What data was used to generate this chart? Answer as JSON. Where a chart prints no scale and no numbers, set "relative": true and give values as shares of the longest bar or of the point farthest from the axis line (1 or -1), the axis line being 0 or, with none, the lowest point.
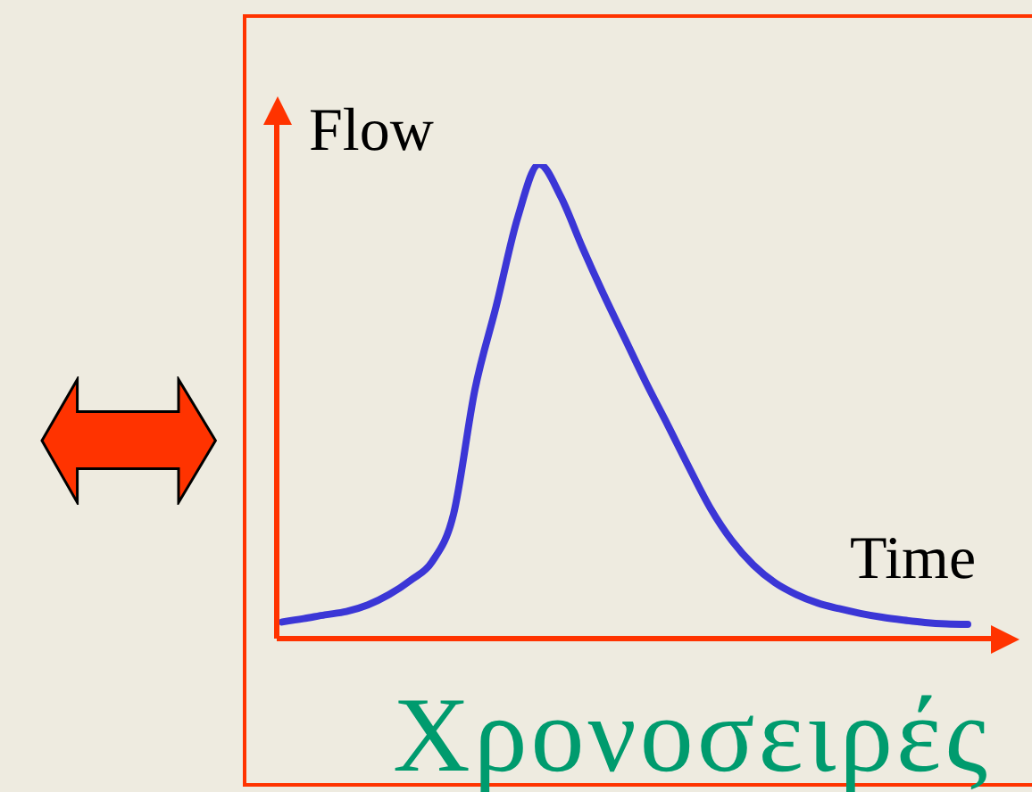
{
  "chart_data": {
    "type": "line",
    "title": "Χρονοσειρές",
    "xlabel": "Time",
    "ylabel": "Flow",
    "relative": true,
    "marker": "none",
    "line_style": "solid",
    "categories": [
      null,
      null,
      null,
      null,
      null,
      null,
      null,
      null,
      null,
      null,
      null,
      null,
      null,
      null,
      null,
      null,
      null,
      null,
      null,
      null,
      null,
      null,
      null,
      null,
      null,
      null,
      null,
      null,
      null,
      null,
      null,
      null,
      null
    ],
    "series": [
      {
        "color": "#3b36d6",
        "values": [
          0.035,
          0.042,
          0.05,
          0.057,
          0.071,
          0.093,
          0.123,
          0.162,
          0.262,
          0.525,
          0.702,
          0.888,
          1,
          0.932,
          0.826,
          0.726,
          0.632,
          0.538,
          0.45,
          0.36,
          0.274,
          0.206,
          0.155,
          0.118,
          0.093,
          0.075,
          0.063,
          0.053,
          0.045,
          0.039,
          0.034,
          0.031,
          0.03
        ]
      }
    ]
  }
}
